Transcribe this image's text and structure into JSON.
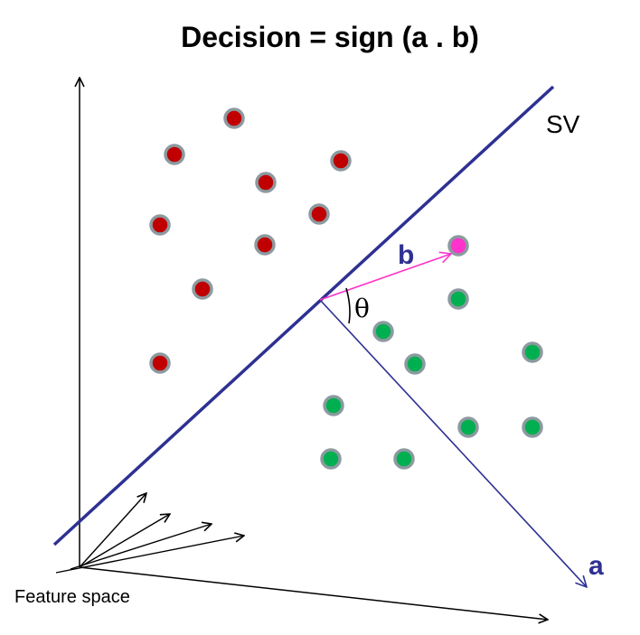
{
  "title": "Decision = sign (a . b)",
  "labels": {
    "support_vector": "SV",
    "vector_a": "a",
    "vector_b": "b",
    "angle": "θ",
    "feature_space": "Feature space"
  },
  "colors": {
    "boundary": "#2e3192",
    "vector_a": "#2e3192",
    "vector_b": "#ff33cc",
    "class_red": "#c00000",
    "class_green": "#00b050",
    "query_point": "#ff33cc",
    "point_outline": "#8c9aa0",
    "axes": "#000000"
  },
  "points": {
    "red_count": 10,
    "green_count": 10,
    "query_count": 1
  }
}
